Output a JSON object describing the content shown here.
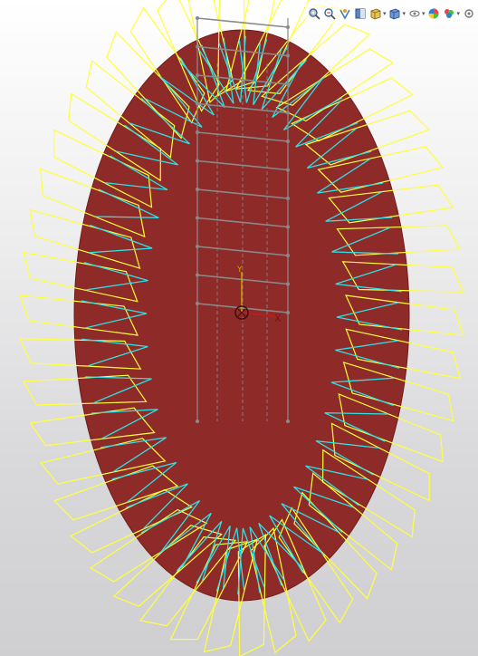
{
  "app": {
    "window_title": ""
  },
  "viewport": {
    "part_color": "#8e2a28",
    "part_edge_color": "#6f1d1b",
    "sketch_color": "#8a8a8a",
    "outer_loop_color": "#ffff3a",
    "inner_loop_color": "#2fe0e6",
    "triad_axes": [
      "Y",
      "X"
    ],
    "origin_icon": "coordinate-origin-icon"
  },
  "heads_up_toolbar": {
    "items": [
      {
        "icon": "zoom-to-fit-icon",
        "has_dropdown": false
      },
      {
        "icon": "zoom-to-area-icon",
        "has_dropdown": false
      },
      {
        "icon": "previous-view-icon",
        "has_dropdown": false
      },
      {
        "icon": "section-view-icon",
        "has_dropdown": false
      },
      {
        "icon": "view-orientation-icon",
        "has_dropdown": true
      },
      {
        "icon": "display-style-icon",
        "has_dropdown": true
      },
      {
        "icon": "hide-show-items-icon",
        "has_dropdown": true
      },
      {
        "icon": "edit-appearance-icon",
        "has_dropdown": false
      },
      {
        "icon": "apply-scene-icon",
        "has_dropdown": true
      },
      {
        "icon": "view-settings-icon",
        "has_dropdown": false
      }
    ]
  }
}
